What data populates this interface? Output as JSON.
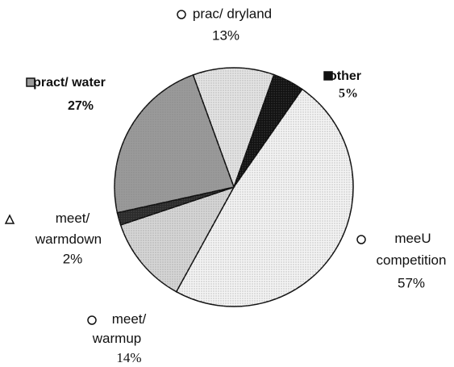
{
  "chart_data": {
    "type": "pie",
    "categories": [
      "prac/ dryland",
      "other",
      "meeU competition",
      "meet/ warmup",
      "meet/ warmdown",
      "pract/ water"
    ],
    "values": [
      13,
      5,
      57,
      14,
      2,
      27
    ],
    "value_labels": [
      "13%",
      "5%",
      "57%",
      "14%",
      "2%",
      "27%"
    ],
    "colors": [
      "#e4e4e4",
      "#111111",
      "#f4f4f4",
      "#d6d6d6",
      "#2a2a2a",
      "#9a9a9a"
    ]
  }
}
